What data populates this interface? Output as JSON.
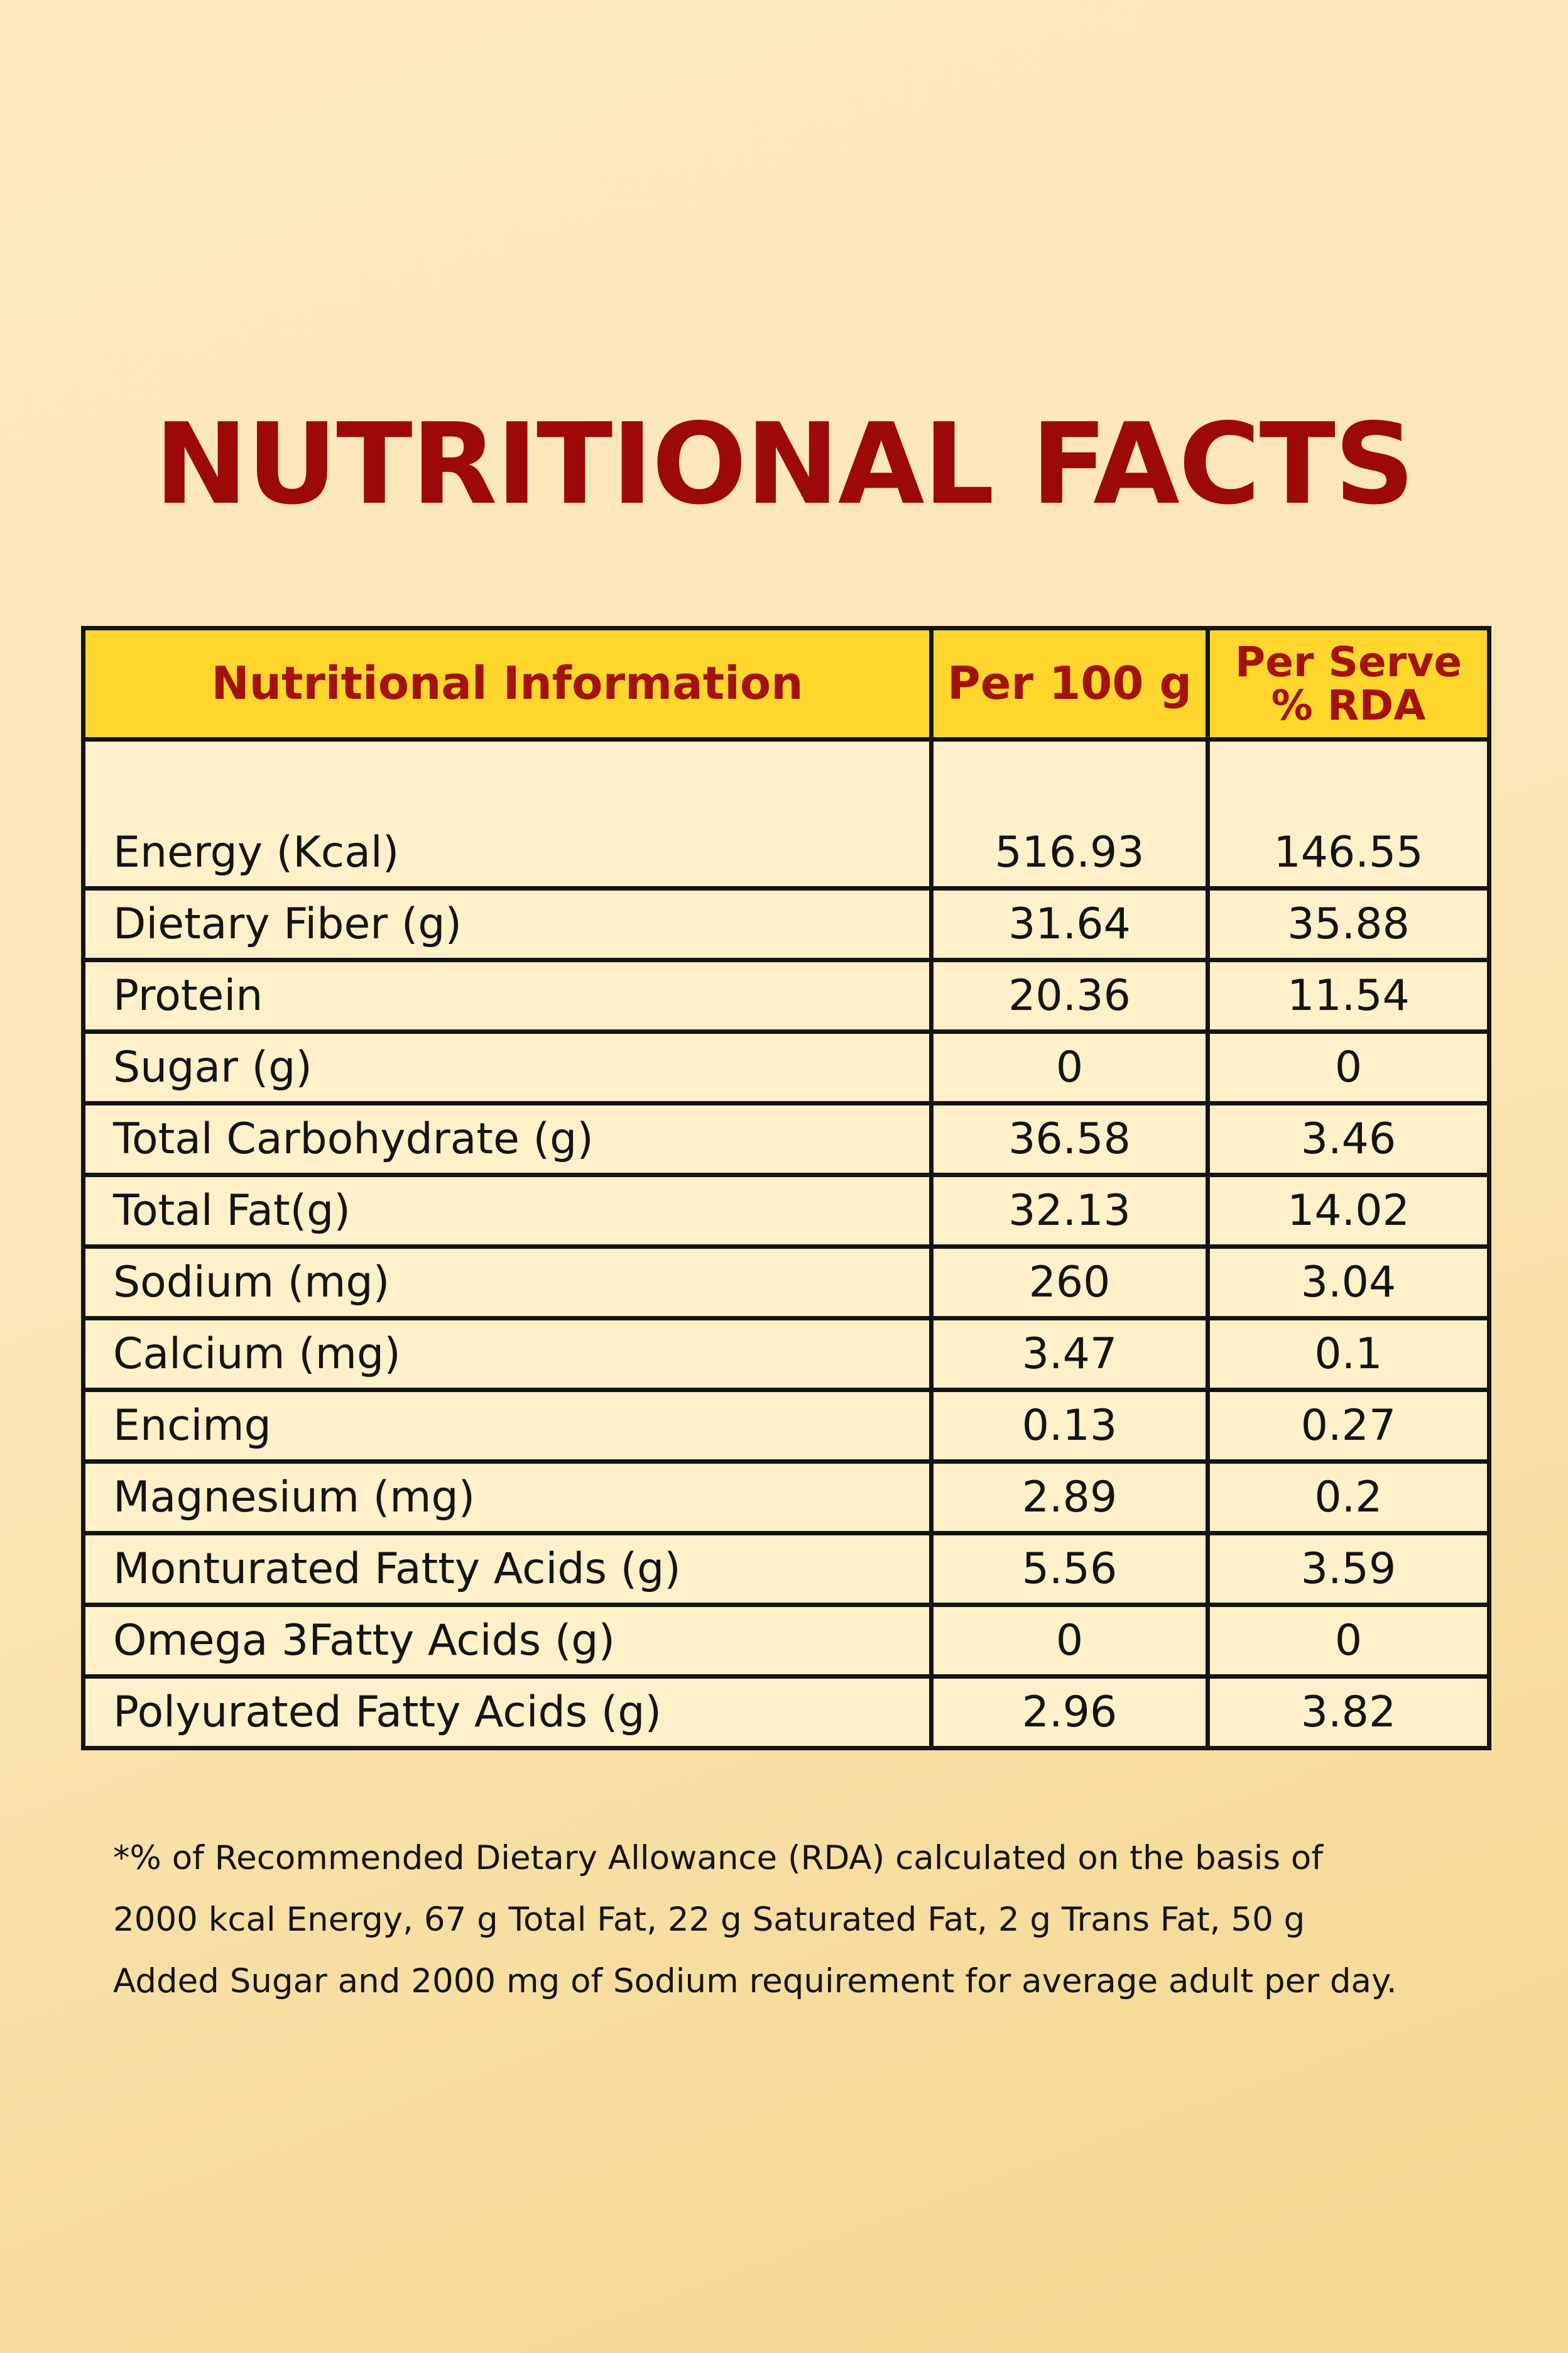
{
  "title": "NUTRITIONAL FACTS",
  "table": {
    "headers": {
      "info": "Nutritional Information",
      "per100": "Per 100 g",
      "rda_line1": "Per Serve",
      "rda_line2": "% RDA"
    },
    "rows": [
      {
        "name": "Energy (Kcal)",
        "per100": "516.93",
        "rda": "146.55"
      },
      {
        "name": "Dietary Fiber (g)",
        "per100": "31.64",
        "rda": "35.88"
      },
      {
        "name": "Protein",
        "per100": "20.36",
        "rda": "11.54"
      },
      {
        "name": "Sugar (g)",
        "per100": "0",
        "rda": "0"
      },
      {
        "name": "Total Carbohydrate (g)",
        "per100": "36.58",
        "rda": "3.46"
      },
      {
        "name": "Total Fat(g)",
        "per100": "32.13",
        "rda": "14.02"
      },
      {
        "name": "Sodium (mg)",
        "per100": "260",
        "rda": "3.04"
      },
      {
        "name": "Calcium (mg)",
        "per100": "3.47",
        "rda": "0.1"
      },
      {
        "name": "Encimg",
        "per100": "0.13",
        "rda": "0.27"
      },
      {
        "name": "Magnesium (mg)",
        "per100": "2.89",
        "rda": "0.2"
      },
      {
        "name": "Monturated Fatty Acids (g)",
        "per100": "5.56",
        "rda": "3.59"
      },
      {
        "name": "Omega 3Fatty Acids (g)",
        "per100": "0",
        "rda": "0"
      },
      {
        "name": "Polyurated Fatty Acids (g)",
        "per100": "2.96",
        "rda": "3.82"
      }
    ]
  },
  "footnote": {
    "line1": "*% of Recommended Dietary Allowance (RDA) calculated on the basis of",
    "line2": "2000 kcal Energy, 67 g Total Fat, 22 g Saturated Fat, 2 g Trans Fat, 50 g",
    "line3": "Added Sugar and 2000 mg of Sodium requirement for average adult per day."
  },
  "colors": {
    "title": "#9c0a08",
    "header_bg": "#fed62c",
    "header_text": "#a3120b",
    "cell_bg": "#fff0c9",
    "border": "#141414"
  }
}
